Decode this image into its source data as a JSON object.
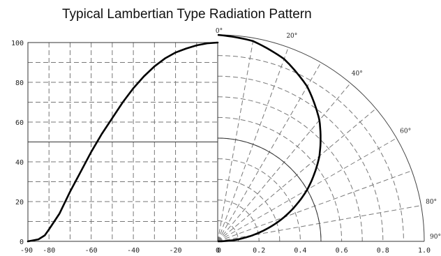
{
  "chart_data": {
    "type": "line",
    "title": "Typical Lambertian Type Radiation Pattern",
    "x_ticks": [
      "-90",
      "-80",
      "-60",
      "-40",
      "-20",
      "0",
      "0",
      "0.2",
      "0.4",
      "0.6",
      "0.8",
      "1.0"
    ],
    "y_ticks": [
      "0",
      "20",
      "40",
      "60",
      "80",
      "100"
    ],
    "angle_labels": [
      {
        "text": "0°",
        "deg": 0
      },
      {
        "text": "20°",
        "deg": 20
      },
      {
        "text": "40°",
        "deg": 40
      },
      {
        "text": "60°",
        "deg": 60
      },
      {
        "text": "80°",
        "deg": 80
      },
      {
        "text": "90°",
        "deg": 90
      }
    ],
    "cartesian": {
      "xlim": [
        -90,
        0
      ],
      "ylim": [
        0,
        100
      ],
      "grid": true,
      "series": [
        {
          "x": [
            -90,
            -85,
            -82,
            -80,
            -75,
            -70,
            -65,
            -60,
            -55,
            -50,
            -45,
            -40,
            -35,
            -30,
            -25,
            -20,
            -15,
            -10,
            -5,
            0
          ],
          "values": [
            0,
            1,
            3,
            6,
            14,
            25,
            35,
            45,
            54,
            62,
            70,
            77,
            83,
            88,
            92,
            95,
            97,
            98.6,
            99.6,
            100
          ]
        }
      ],
      "half_intensity_line": {
        "y": 50,
        "x_from": -90,
        "x_to": 0
      }
    },
    "polar": {
      "rlim": [
        0,
        1.0
      ],
      "grid": true,
      "series": [
        {
          "angle_deg": [
            0,
            10,
            20,
            30,
            40,
            50,
            60,
            70,
            80,
            90
          ],
          "r": [
            1.0,
            0.9848,
            0.9397,
            0.866,
            0.766,
            0.6428,
            0.5,
            0.342,
            0.1736,
            0
          ]
        }
      ],
      "half_intensity_arc": {
        "r": 0.5
      }
    }
  }
}
